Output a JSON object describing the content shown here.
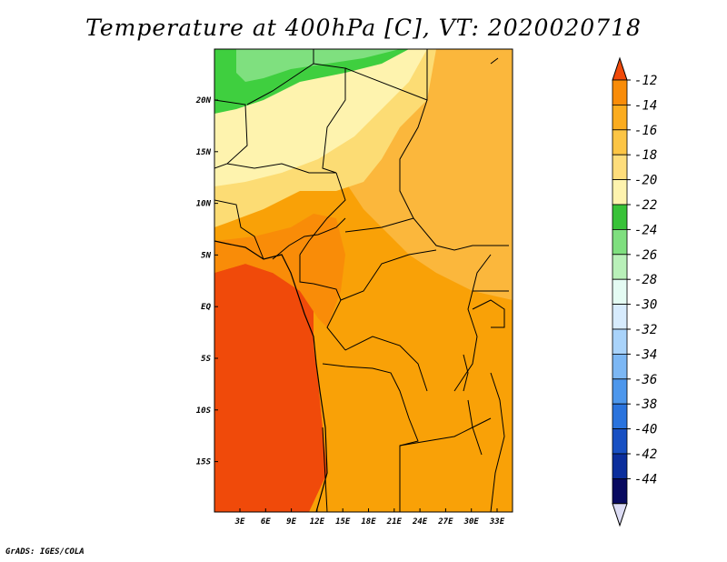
{
  "title": "Temperature at 400hPa [C], VT: 2020020718",
  "credit": "GrADS: IGES/COLA",
  "map": {
    "x_ticks": [
      "3E",
      "6E",
      "9E",
      "12E",
      "15E",
      "18E",
      "21E",
      "24E",
      "27E",
      "30E",
      "33E"
    ],
    "y_ticks": [
      "20N",
      "15N",
      "10N",
      "5N",
      "EQ",
      "5S",
      "10S",
      "15S"
    ],
    "colors": {
      "c_m12": "#f04a0a",
      "c_m14": "#f9a107",
      "c_m16": "#fbb73c",
      "c_m18": "#fcdc74",
      "c_m20": "#fef3ae",
      "c_m22": "#ffffff",
      "c_m24_g": "#3fcf3f",
      "c_m26_g": "#7fe07f"
    }
  },
  "colorbar": {
    "labels": [
      "-12",
      "-14",
      "-16",
      "-18",
      "-20",
      "-22",
      "-24",
      "-26",
      "-28",
      "-30",
      "-32",
      "-34",
      "-36",
      "-38",
      "-40",
      "-42",
      "-44"
    ],
    "colors": [
      "#f04a0a",
      "#f98c08",
      "#fbac1f",
      "#fcc545",
      "#fedd7b",
      "#fef3ae",
      "#38c238",
      "#7fdf7f",
      "#b9f0b9",
      "#e4fbf3",
      "#d7ebfd",
      "#a9d3fa",
      "#7cb7f4",
      "#4d97ec",
      "#2a73dd",
      "#1850c3",
      "#0b2e9c",
      "#080a60",
      "#dcdcf4"
    ]
  }
}
